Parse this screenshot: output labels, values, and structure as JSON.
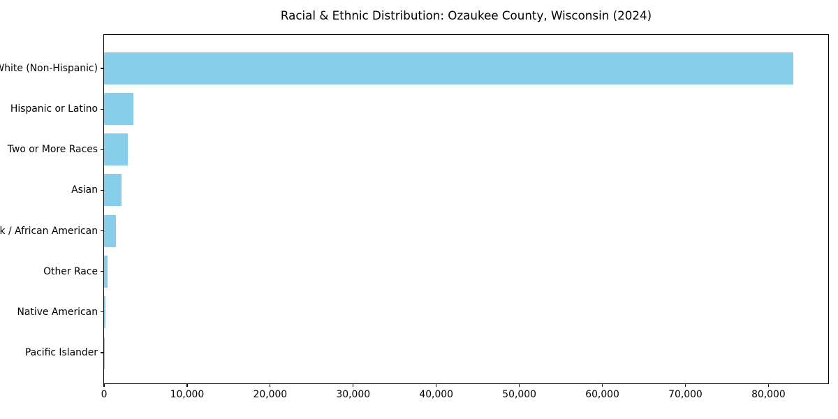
{
  "title": "Racial & Ethnic Distribution: Ozaukee County, Wisconsin (2024)",
  "colors": {
    "bar": "#87CEEB",
    "axis": "#000000",
    "background": "#ffffff",
    "text": "#000000"
  },
  "chart_data": {
    "type": "bar",
    "orientation": "horizontal",
    "title": "Racial & Ethnic Distribution: Ozaukee County, Wisconsin (2024)",
    "categories": [
      "White (Non-Hispanic)",
      "Hispanic or Latino",
      "Two or More Races",
      "Asian",
      "Black / African American",
      "Other Race",
      "Native American",
      "Pacific Islander"
    ],
    "values": [
      83000,
      3500,
      2850,
      2100,
      1400,
      420,
      190,
      25
    ],
    "bar_color": "#87CEEB",
    "xlabel": "",
    "ylabel": "",
    "xlim": [
      0,
      87200
    ],
    "x_ticks": [
      0,
      10000,
      20000,
      30000,
      40000,
      50000,
      60000,
      70000,
      80000
    ],
    "x_tick_labels": [
      "0",
      "10,000",
      "20,000",
      "30,000",
      "40,000",
      "50,000",
      "60,000",
      "70,000",
      "80,000"
    ],
    "grid": false,
    "legend_position": "none"
  }
}
